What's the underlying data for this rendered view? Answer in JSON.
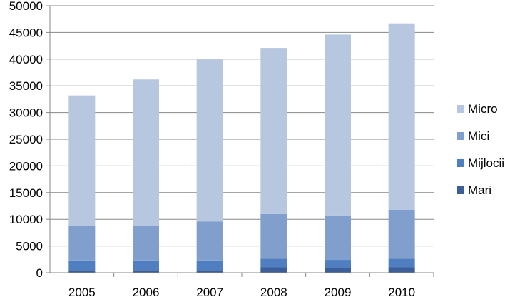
{
  "chart_data": {
    "type": "bar",
    "stacked": true,
    "categories": [
      "2005",
      "2006",
      "2007",
      "2008",
      "2009",
      "2010"
    ],
    "series": [
      {
        "name": "Mari",
        "color": "#3C5F98",
        "values": [
          500,
          500,
          500,
          1000,
          900,
          1000
        ]
      },
      {
        "name": "Mijlocii",
        "color": "#4F7FC0",
        "values": [
          1800,
          1800,
          1800,
          1600,
          1500,
          1600
        ]
      },
      {
        "name": "Mici",
        "color": "#819FCD",
        "values": [
          6400,
          6500,
          7300,
          8400,
          8300,
          9200
        ]
      },
      {
        "name": "Micro",
        "color": "#B8C7E0",
        "values": [
          24500,
          27400,
          30300,
          31100,
          33900,
          34900
        ]
      }
    ],
    "ylim": [
      0,
      50000
    ],
    "yticks": [
      "0",
      "5000",
      "10000",
      "15000",
      "20000",
      "25000",
      "30000",
      "35000",
      "40000",
      "45000",
      "50000"
    ],
    "grid": true,
    "legend_position": "right",
    "legend_order": [
      "Micro",
      "Mici",
      "Mijlocii",
      "Mari"
    ],
    "title": "",
    "xlabel": "",
    "ylabel": ""
  }
}
